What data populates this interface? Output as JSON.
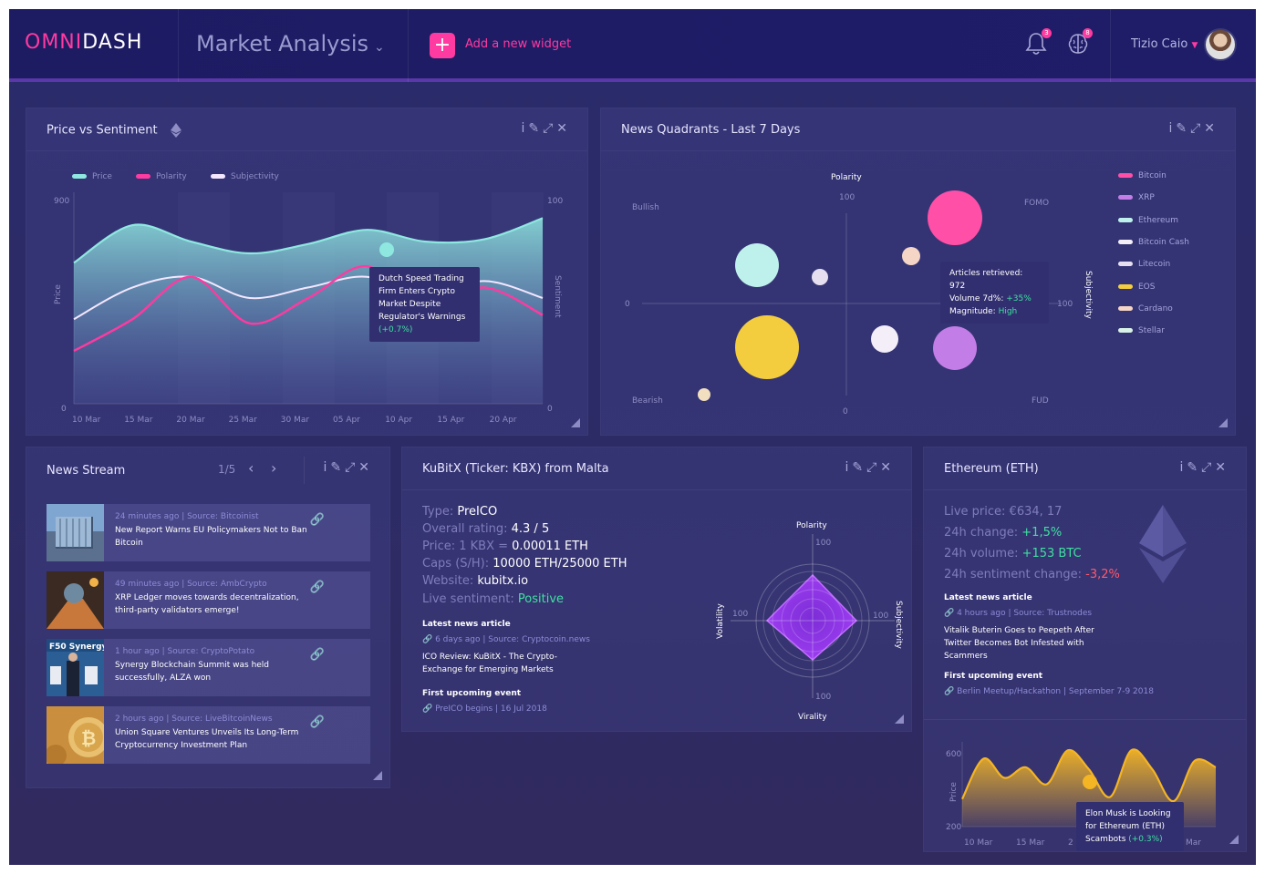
{
  "header": {
    "logo_a": "OMNI",
    "logo_b": "DASH",
    "dashboard_title": "Market Analysis",
    "add_widget_label": "Add a new widget",
    "notif_count": "3",
    "brain_count": "8",
    "user_name": "Tizio Caio"
  },
  "price_vs_sentiment": {
    "title": "Price vs Sentiment",
    "legend": [
      "Price",
      "Polarity",
      "Subjectivity"
    ],
    "y_left_label": "Price",
    "y_right_label": "Sentiment",
    "y_left_ticks": [
      "900",
      "0"
    ],
    "y_right_ticks": [
      "100",
      "0"
    ],
    "x_ticks": [
      "10 Mar",
      "15 Mar",
      "20 Mar",
      "25 Mar",
      "30 Mar",
      "05 Apr",
      "10 Apr",
      "15 Apr",
      "20 Apr"
    ],
    "tooltip_lines": [
      "Dutch Speed Trading",
      "Firm Enters Crypto",
      "Market Despite",
      "Regulator's Warnings"
    ],
    "tooltip_change": "(+0.7%)",
    "colors": {
      "price": "#8fe8e0",
      "polarity": "#ff3aa0",
      "subjectivity": "#f4e7ff"
    }
  },
  "chart_data": [
    {
      "type": "area",
      "title": "Price vs Sentiment",
      "xlabel": "",
      "ylabel": "Price",
      "ylabel_right": "Sentiment",
      "ylim": [
        0,
        900
      ],
      "ylim_right": [
        0,
        100
      ],
      "x": [
        "10 Mar",
        "15 Mar",
        "20 Mar",
        "25 Mar",
        "30 Mar",
        "05 Apr",
        "10 Apr",
        "15 Apr",
        "20 Apr"
      ],
      "series": [
        {
          "name": "Price",
          "values": [
            600,
            760,
            690,
            640,
            680,
            740,
            690,
            700,
            790
          ]
        },
        {
          "name": "Polarity",
          "values": [
            25,
            40,
            60,
            38,
            50,
            65,
            45,
            55,
            42
          ]
        },
        {
          "name": "Subjectivity",
          "values": [
            40,
            55,
            60,
            50,
            55,
            60,
            50,
            58,
            50
          ]
        }
      ]
    },
    {
      "type": "scatter",
      "title": "News Quadrants - Last 7 Days",
      "xlabel": "Subjectivity",
      "ylabel": "Polarity",
      "quadrants": [
        "Bullish",
        "FOMO",
        "Bearish",
        "FUD"
      ],
      "x_ticks": [
        "0",
        "100"
      ],
      "y_ticks": [
        "100",
        "0"
      ]
    },
    {
      "type": "radar",
      "axes": [
        "Polarity",
        "Subjectivity",
        "Virality",
        "Volatility"
      ],
      "axis_max": "100"
    },
    {
      "type": "area",
      "ylabel": "Price",
      "ylim": [
        200,
        600
      ],
      "x_ticks": [
        "10 Mar",
        "15 Mar",
        "2",
        "Mar"
      ],
      "values": [
        330,
        520,
        430,
        480,
        400,
        560,
        470,
        340,
        560,
        470,
        320,
        510,
        480
      ]
    }
  ],
  "news_quadrants": {
    "title": "News Quadrants - Last 7 Days",
    "y_label": "Polarity",
    "x_label": "Subjectivity",
    "bullish": "Bullish",
    "fomo": "FOMO",
    "bearish": "Bearish",
    "fud": "FUD",
    "tick_top": "100",
    "tick_bottom": "0",
    "tick_left": "0",
    "tick_right": "100",
    "tooltip_articles": "Articles retrieved: 972",
    "tooltip_volume_label": "Volume 7d%: ",
    "tooltip_volume_value": "+35%",
    "tooltip_magnitude_label": "Magnitude: ",
    "tooltip_magnitude_value": "High",
    "legend": [
      {
        "name": "Bitcoin",
        "color": "#ff4fa6"
      },
      {
        "name": "XRP",
        "color": "#c27de6"
      },
      {
        "name": "Ethereum",
        "color": "#bff1ec"
      },
      {
        "name": "Bitcoin Cash",
        "color": "#f3eef8"
      },
      {
        "name": "Litecoin",
        "color": "#e6dff0"
      },
      {
        "name": "EOS",
        "color": "#f4cd3e"
      },
      {
        "name": "Cardano",
        "color": "#f5d5c5"
      },
      {
        "name": "Stellar",
        "color": "#d8f2e6"
      }
    ]
  },
  "news_stream": {
    "title": "News Stream",
    "pager": "1/5",
    "items": [
      {
        "meta": "24 minutes ago | Source: Bitcoinist",
        "headline": "New Report Warns EU Policymakers Not to Ban Bitcoin"
      },
      {
        "meta": "49 minutes ago | Source: AmbCrypto",
        "headline": "XRP Ledger moves towards decentralization, third-party validators emerge!"
      },
      {
        "meta": "1 hour ago | Source: CryptoPotato",
        "headline": "Synergy Blockchain Summit was held successfully, ALZA won"
      },
      {
        "meta": "2 hours ago | Source: LiveBitcoinNews",
        "headline": "Union Square Ventures Unveils Its Long-Term Cryptocurrency Investment Plan"
      }
    ],
    "thumb3_text": "F50 Synergy Bl"
  },
  "kubitx": {
    "title": "KuBitX (Ticker: KBX) from Malta",
    "type_label": "Type: ",
    "type_value": "PreICO",
    "rating_label": "Overall rating: ",
    "rating_value": "4.3 / 5",
    "price_label": "Price: 1 KBX = ",
    "price_value": "0.00011 ETH",
    "caps_label": "Caps (S/H): ",
    "caps_value": "10000 ETH/25000 ETH",
    "website_label": "Website: ",
    "website_value": "kubitx.io",
    "sentiment_label": "Live sentiment: ",
    "sentiment_value": "Positive",
    "latest_title": "Latest news article",
    "latest_meta": "6 days ago | Source: Cryptocoin.news",
    "latest_text": "ICO Review: KuBitX - The Crypto-Exchange for Emerging Markets",
    "event_title": "First upcoming event",
    "event_text": "PreICO begins | 16 Jul 2018",
    "radar_top": "Polarity",
    "radar_right": "Subjectivity",
    "radar_bottom": "Virality",
    "radar_left": "Volatility",
    "radar_tick_top": "100",
    "radar_tick_right": "100",
    "radar_tick_bottom": "100",
    "radar_tick_left": "100"
  },
  "ethereum": {
    "title": "Ethereum (ETH)",
    "price_label": "Live price: ",
    "price_value": "€634, 17",
    "change_label": "24h change: ",
    "change_value": "+1,5%",
    "volume_label": "24h volume: ",
    "volume_value": "+153 BTC",
    "sent_label": "24h sentiment change: ",
    "sent_value": "-3,2%",
    "latest_title": "Latest news article",
    "latest_meta": "4 hours ago | Source: Trustnodes",
    "latest_text": "Vitalik Buterin Goes to Peepeth After Twitter Becomes Bot Infested with Scammers",
    "event_title": "First upcoming event",
    "event_text": "Berlin Meetup/Hackathon | September 7-9 2018",
    "chart_ylabel": "Price",
    "chart_ytop": "600",
    "chart_ybottom": "200",
    "chart_x1": "10 Mar",
    "chart_x2": "15 Mar",
    "chart_x3": "2",
    "chart_x4": "Mar",
    "tooltip_lines": [
      "Elon Musk is Looking",
      "for Ethereum (ETH)"
    ],
    "tooltip_last": "Scambots ",
    "tooltip_change": "(+0.3%)"
  }
}
